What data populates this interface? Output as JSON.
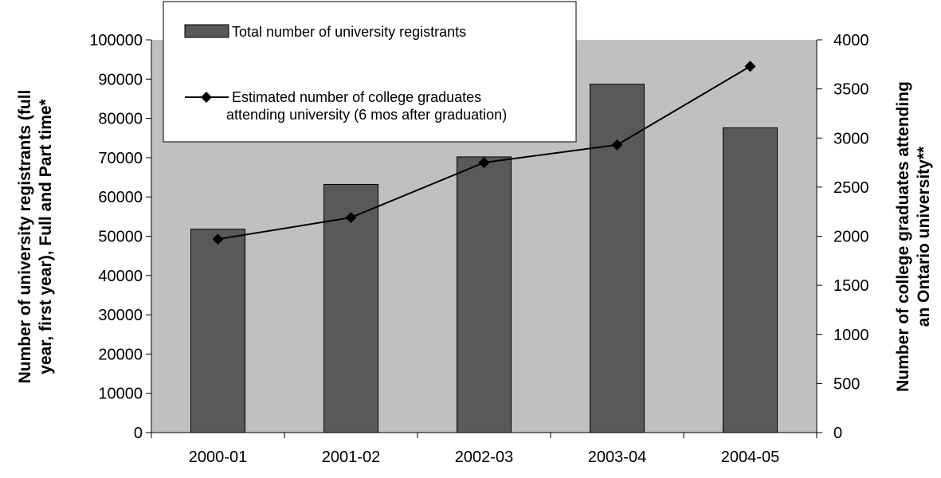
{
  "chart_data": {
    "type": "bar",
    "categories": [
      "2000-01",
      "2001-02",
      "2002-03",
      "2003-04",
      "2004-05"
    ],
    "series": [
      {
        "name": "Total number of university registrants",
        "type": "bar",
        "axis": "left",
        "values": [
          51800,
          63200,
          70200,
          88700,
          77600
        ]
      },
      {
        "name_lines": [
          "Estimated number of college graduates",
          "attending university (6 mos after graduation)"
        ],
        "type": "line",
        "axis": "right",
        "values": [
          1970,
          2190,
          2750,
          2930,
          3730
        ]
      }
    ],
    "y_left": {
      "label_lines": [
        "Number of university registrants (full",
        "year, first year), Full and Part time*"
      ],
      "ylim": [
        0,
        100000
      ],
      "ticks": [
        "0",
        "10000",
        "20000",
        "30000",
        "40000",
        "50000",
        "60000",
        "70000",
        "80000",
        "90000",
        "100000"
      ]
    },
    "y_right": {
      "label_lines": [
        "Number of college graduates attending",
        "an Ontario university**"
      ],
      "ylim": [
        0,
        4000
      ],
      "ticks": [
        "0",
        "500",
        "1000",
        "1500",
        "2000",
        "2500",
        "3000",
        "3500",
        "4000"
      ]
    },
    "plot_background": "#c0c0c0",
    "bar_color": "#595959",
    "line_color": "#000000",
    "legend_position": "top-left",
    "grid": false
  }
}
